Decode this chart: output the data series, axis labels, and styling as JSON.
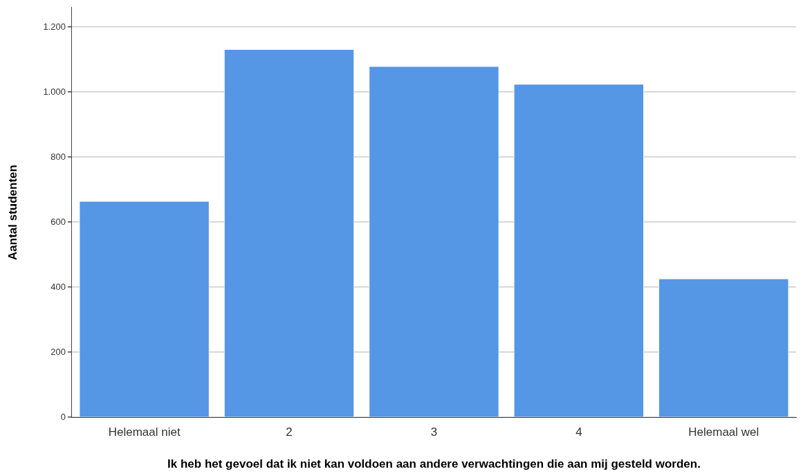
{
  "chart_data": {
    "type": "bar",
    "xlabel": "Ik heb het gevoel dat ik niet kan voldoen aan andere verwachtingen die aan mij gesteld worden.",
    "ylabel": "Aantal studenten",
    "categories": [
      "Helemaal niet",
      "2",
      "3",
      "4",
      "Helemaal wel"
    ],
    "values": [
      665,
      1132,
      1080,
      1025,
      427
    ],
    "color": "#5596e5",
    "ylim": [
      0,
      1260
    ],
    "yticks": [
      0,
      200,
      400,
      600,
      800,
      {
        "value": 1000,
        "label": "1.000"
      },
      {
        "value": 1200,
        "label": "1.200"
      }
    ],
    "grid": "y"
  }
}
